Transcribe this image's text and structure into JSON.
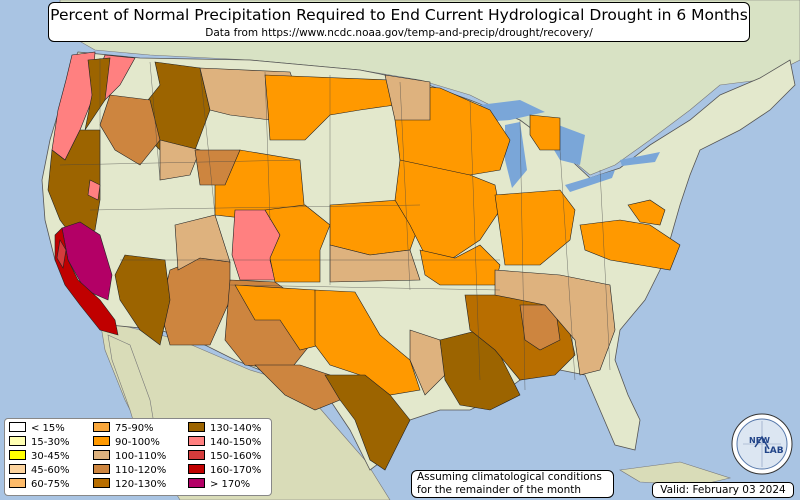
{
  "title": "Percent of Normal Precipitation Required to End Current Hydrological Drought in 6 Months",
  "subtitle": "Data from https://www.ncdc.noaa.gov/temp-and-precip/drought/recovery/",
  "legend": [
    {
      "label": "< 15%",
      "color": "#ffffff"
    },
    {
      "label": "15-30%",
      "color": "#ffffb2"
    },
    {
      "label": "30-45%",
      "color": "#ffff00"
    },
    {
      "label": "45-60%",
      "color": "#fdd49e"
    },
    {
      "label": "60-75%",
      "color": "#fdbb6a"
    },
    {
      "label": "75-90%",
      "color": "#f9a73c"
    },
    {
      "label": "90-100%",
      "color": "#ff9900"
    },
    {
      "label": "100-110%",
      "color": "#deb27e"
    },
    {
      "label": "110-120%",
      "color": "#cd853f"
    },
    {
      "label": "120-130%",
      "color": "#b86e00"
    },
    {
      "label": "130-140%",
      "color": "#9c6400"
    },
    {
      "label": "140-150%",
      "color": "#ff8080"
    },
    {
      "label": "150-160%",
      "color": "#d43c3c"
    },
    {
      "label": "160-170%",
      "color": "#c00000"
    },
    {
      "label": "> 170%",
      "color": "#b30066"
    }
  ],
  "note": {
    "line1": "Assuming climatological conditions",
    "line2": "for the remainder of the month"
  },
  "valid": "Valid: February 03 2024",
  "logo": {
    "text_top": "NEW",
    "text_main": "LAB"
  },
  "colors": {
    "ocean": "#a9c4e3",
    "land": "#dfe6c9",
    "lakes": "#7aa6d8"
  }
}
